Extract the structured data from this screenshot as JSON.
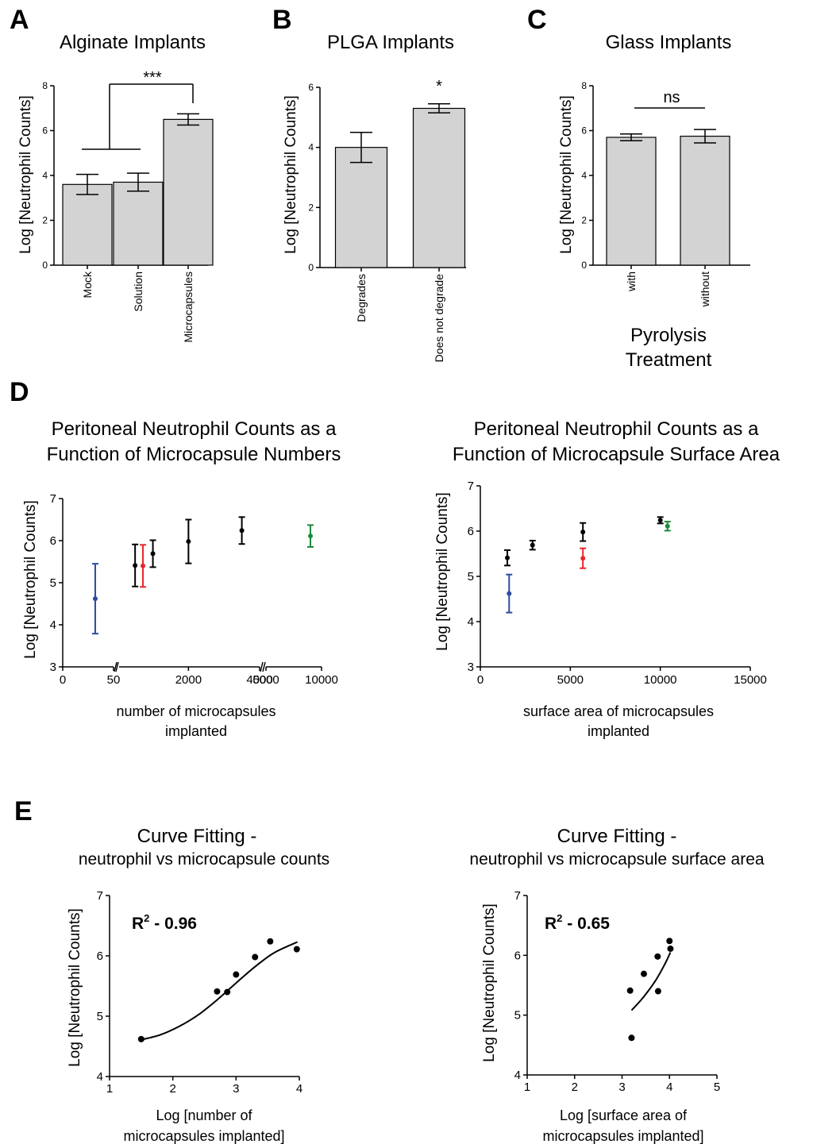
{
  "panel_letters": [
    "A",
    "B",
    "C",
    "D",
    "E"
  ],
  "chart_data": [
    {
      "panel": "A",
      "type": "bar",
      "title": "Alginate Implants",
      "ylabel": "Log [Neutrophil Counts]",
      "xlabel": "",
      "ylim": [
        0,
        8
      ],
      "yticks": [
        "0",
        "2",
        "4",
        "6",
        "8"
      ],
      "categories": [
        "Mock",
        "Solution",
        "Microcapsules"
      ],
      "values": [
        3.6,
        3.7,
        6.5
      ],
      "errors": [
        0.45,
        0.4,
        0.25
      ],
      "significance": "***"
    },
    {
      "panel": "B",
      "type": "bar",
      "title": "PLGA Implants",
      "ylabel": "Log [Neutrophil Counts]",
      "xlabel": "",
      "ylim": [
        0,
        6
      ],
      "yticks": [
        "0",
        "2",
        "4",
        "6"
      ],
      "categories": [
        "Degrades",
        "Does not degrade"
      ],
      "values": [
        4.0,
        5.3
      ],
      "errors": [
        0.5,
        0.15
      ],
      "significance": "*"
    },
    {
      "panel": "C",
      "type": "bar",
      "title": "Glass Implants",
      "ylabel": "Log [Neutrophil Counts]",
      "xlabel": "Pyrolysis Treatment",
      "ylim": [
        0,
        8
      ],
      "yticks": [
        "0",
        "2",
        "4",
        "6",
        "8"
      ],
      "categories": [
        "with",
        "without"
      ],
      "values": [
        5.7,
        5.75
      ],
      "errors": [
        0.15,
        0.3
      ],
      "significance": "ns"
    },
    {
      "panel": "D-left",
      "type": "scatter",
      "title": "Peritoneal Neutrophil Counts as a Function of Microcapsule Numbers",
      "ylabel": "Log [Neutrophil Counts]",
      "xlabel": "number of microcapsules implanted",
      "ylim": [
        3,
        7
      ],
      "yticks": [
        "3",
        "4",
        "5",
        "6",
        "7"
      ],
      "x_tick_labels": [
        "0",
        "50",
        "2000",
        "4000",
        "5000",
        "10000"
      ],
      "points": [
        {
          "x": 32,
          "y": 4.62,
          "err": 0.83,
          "color": "#2e4a9e"
        },
        {
          "x": 500,
          "y": 5.41,
          "err": 0.5,
          "color": "#000000"
        },
        {
          "x": 720,
          "y": 5.4,
          "err": 0.5,
          "color": "#e8262b"
        },
        {
          "x": 1000,
          "y": 5.69,
          "err": 0.32,
          "color": "#000000"
        },
        {
          "x": 2000,
          "y": 5.98,
          "err": 0.52,
          "color": "#000000"
        },
        {
          "x": 3500,
          "y": 6.24,
          "err": 0.32,
          "color": "#000000"
        },
        {
          "x": 9000,
          "y": 6.11,
          "err": 0.26,
          "color": "#1e8a3c"
        }
      ]
    },
    {
      "panel": "D-right",
      "type": "scatter",
      "title": "Peritoneal Neutrophil Counts as a Function of Microcapsule Surface Area",
      "ylabel": "Log [Neutrophil Counts]",
      "xlabel": "surface area of microcapsules implanted",
      "ylim": [
        3,
        7
      ],
      "xlim": [
        0,
        15000
      ],
      "yticks": [
        "3",
        "4",
        "5",
        "6",
        "7"
      ],
      "xticks": [
        "0",
        "5000",
        "10000",
        "15000"
      ],
      "points": [
        {
          "x": 1500,
          "y": 5.41,
          "err": 0.17,
          "color": "#000000"
        },
        {
          "x": 1600,
          "y": 4.62,
          "err": 0.42,
          "color": "#2e4a9e"
        },
        {
          "x": 2900,
          "y": 5.69,
          "err": 0.1,
          "color": "#000000"
        },
        {
          "x": 5700,
          "y": 5.98,
          "err": 0.2,
          "color": "#000000"
        },
        {
          "x": 5700,
          "y": 5.4,
          "err": 0.22,
          "color": "#e8262b"
        },
        {
          "x": 10000,
          "y": 6.24,
          "err": 0.07,
          "color": "#000000"
        },
        {
          "x": 10400,
          "y": 6.11,
          "err": 0.1,
          "color": "#1e8a3c"
        }
      ]
    },
    {
      "panel": "E-left",
      "type": "scatter",
      "title": "Curve Fitting -",
      "subtitle": "neutrophil vs microcapsule counts",
      "ylabel": "Log [Neutrophil Counts]",
      "xlabel": "Log [number of microcapsules implanted]",
      "annotation": {
        "main": "R",
        "sup": "2",
        "rest": " - 0.96"
      },
      "xlim": [
        1,
        4
      ],
      "ylim": [
        4,
        7
      ],
      "xticks": [
        "1",
        "2",
        "3",
        "4"
      ],
      "yticks": [
        "4",
        "5",
        "6",
        "7"
      ],
      "points": [
        {
          "x": 1.5,
          "y": 4.62
        },
        {
          "x": 2.7,
          "y": 5.41
        },
        {
          "x": 2.86,
          "y": 5.4
        },
        {
          "x": 3.0,
          "y": 5.69
        },
        {
          "x": 3.3,
          "y": 5.98
        },
        {
          "x": 3.54,
          "y": 6.24
        },
        {
          "x": 3.96,
          "y": 6.11
        }
      ],
      "fit": [
        [
          1.5,
          4.61
        ],
        [
          1.8,
          4.69
        ],
        [
          2.1,
          4.83
        ],
        [
          2.4,
          5.02
        ],
        [
          2.7,
          5.27
        ],
        [
          3.0,
          5.55
        ],
        [
          3.3,
          5.82
        ],
        [
          3.6,
          6.05
        ],
        [
          3.97,
          6.23
        ]
      ]
    },
    {
      "panel": "E-right",
      "type": "scatter",
      "title": "Curve Fitting -",
      "subtitle": "neutrophil vs microcapsule surface area",
      "ylabel": "Log [Neutrophil Counts]",
      "xlabel": "Log [surface area of microcapsules implanted]",
      "annotation": {
        "main": "R",
        "sup": "2",
        "rest": " - 0.65"
      },
      "xlim": [
        1,
        5
      ],
      "ylim": [
        4,
        7
      ],
      "xticks": [
        "1",
        "2",
        "3",
        "4",
        "5"
      ],
      "yticks": [
        "4",
        "5",
        "6",
        "7"
      ],
      "points": [
        {
          "x": 3.17,
          "y": 5.41
        },
        {
          "x": 3.2,
          "y": 4.62
        },
        {
          "x": 3.46,
          "y": 5.69
        },
        {
          "x": 3.75,
          "y": 5.98
        },
        {
          "x": 3.76,
          "y": 5.4
        },
        {
          "x": 4.0,
          "y": 6.24
        },
        {
          "x": 4.02,
          "y": 6.11
        }
      ],
      "fit": [
        [
          3.2,
          5.08
        ],
        [
          3.45,
          5.3
        ],
        [
          3.7,
          5.57
        ],
        [
          3.9,
          5.85
        ],
        [
          4.02,
          6.05
        ]
      ]
    }
  ]
}
